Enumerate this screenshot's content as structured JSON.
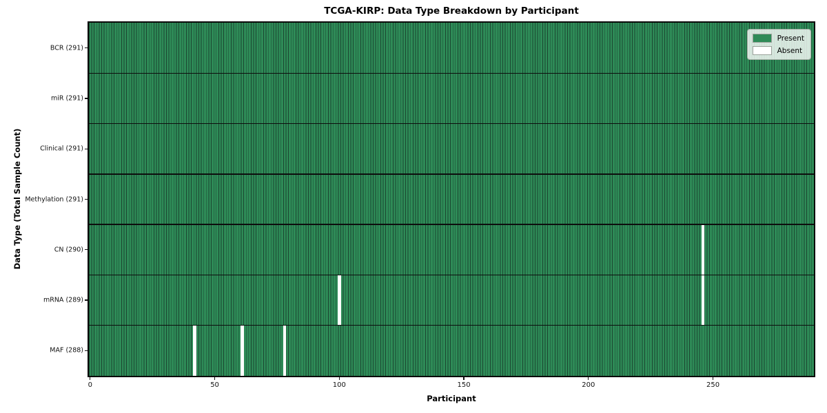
{
  "chart_data": {
    "type": "heatmap",
    "title": "TCGA-KIRP: Data Type Breakdown by Participant",
    "xlabel": "Participant",
    "ylabel": "Data Type (Total Sample Count)",
    "n_participants": 291,
    "x_range": [
      0,
      291
    ],
    "x_ticks": [
      0,
      50,
      100,
      150,
      200,
      250
    ],
    "rows": [
      {
        "data_type": "BCR",
        "label": "BCR (291)",
        "present_count": 291,
        "absent_participants": []
      },
      {
        "data_type": "miR",
        "label": "miR (291)",
        "present_count": 291,
        "absent_participants": []
      },
      {
        "data_type": "Clinical",
        "label": "Clinical (291)",
        "present_count": 291,
        "absent_participants": []
      },
      {
        "data_type": "Methylation",
        "label": "Methylation (291)",
        "present_count": 291,
        "absent_participants": []
      },
      {
        "data_type": "CN",
        "label": "CN (290)",
        "present_count": 290,
        "absent_participants": [
          246
        ]
      },
      {
        "data_type": "mRNA",
        "label": "mRNA (289)",
        "present_count": 289,
        "absent_participants": [
          100,
          246
        ]
      },
      {
        "data_type": "MAF",
        "label": "MAF (288)",
        "present_count": 288,
        "absent_participants": [
          42,
          61,
          78
        ]
      }
    ],
    "legend": [
      {
        "label": "Present",
        "color": "#2e8b57"
      },
      {
        "label": "Absent",
        "color": "#ffffff"
      }
    ],
    "colors": {
      "present": "#2e8b57",
      "absent": "#ffffff",
      "cell_edge": "#1b4530",
      "row_separator": "#0d0d0d",
      "frame": "#0a0a0a"
    },
    "legend_position": "upper right",
    "grid": false
  }
}
